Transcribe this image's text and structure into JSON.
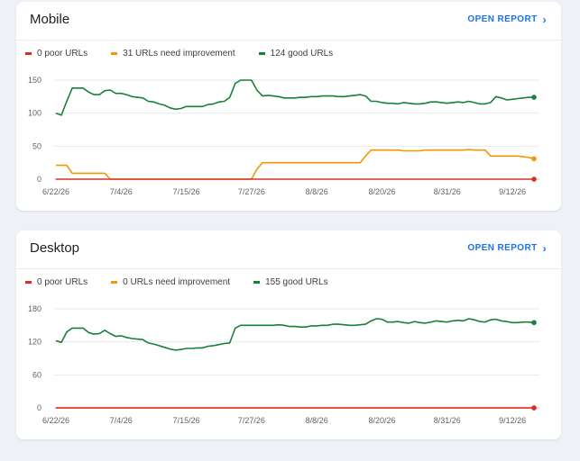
{
  "colors": {
    "poor": "#d93025",
    "needs": "#f29900",
    "good": "#188038",
    "link": "#1a73e8"
  },
  "mobile": {
    "title": "Mobile",
    "open_report": "OPEN REPORT",
    "chevron_icon": "chevron-right-icon",
    "legend": [
      {
        "label": "0 poor URLs",
        "key": "poor"
      },
      {
        "label": "31 URLs need improvement",
        "key": "needs"
      },
      {
        "label": "124 good URLs",
        "key": "good"
      }
    ]
  },
  "desktop": {
    "title": "Desktop",
    "open_report": "OPEN REPORT",
    "chevron_icon": "chevron-right-icon",
    "legend": [
      {
        "label": "0 poor URLs",
        "key": "poor"
      },
      {
        "label": "0 URLs need improvement",
        "key": "needs"
      },
      {
        "label": "155 good URLs",
        "key": "good"
      }
    ]
  },
  "chart_data": [
    {
      "type": "line",
      "x_tick_labels": [
        "6/22/26",
        "7/4/26",
        "7/15/26",
        "7/27/26",
        "8/8/26",
        "8/20/26",
        "8/31/26",
        "9/12/26"
      ],
      "y_ticks": [
        0,
        50,
        100,
        150
      ],
      "ylim": [
        0,
        150
      ],
      "grid": true,
      "series": [
        {
          "name": "good",
          "key": "good",
          "values": [
            [
              0,
              100
            ],
            [
              1,
              97
            ],
            [
              2,
              118
            ],
            [
              3,
              138
            ],
            [
              4,
              138
            ],
            [
              5,
              138
            ],
            [
              6,
              132
            ],
            [
              7,
              128
            ],
            [
              8,
              128
            ],
            [
              9,
              134
            ],
            [
              10,
              135
            ],
            [
              11,
              130
            ],
            [
              12,
              130
            ],
            [
              13,
              128
            ],
            [
              14,
              125
            ],
            [
              15,
              124
            ],
            [
              16,
              123
            ],
            [
              17,
              118
            ],
            [
              18,
              117
            ],
            [
              19,
              114
            ],
            [
              20,
              112
            ],
            [
              21,
              108
            ],
            [
              22,
              106
            ],
            [
              23,
              107
            ],
            [
              24,
              110
            ],
            [
              25,
              110
            ],
            [
              26,
              110
            ],
            [
              27,
              110
            ],
            [
              28,
              113
            ],
            [
              29,
              114
            ],
            [
              30,
              117
            ],
            [
              31,
              118
            ],
            [
              32,
              124
            ],
            [
              33,
              145
            ],
            [
              34,
              150
            ],
            [
              35,
              150
            ],
            [
              36,
              150
            ],
            [
              37,
              135
            ],
            [
              38,
              126
            ],
            [
              39,
              127
            ],
            [
              40,
              126
            ],
            [
              41,
              125
            ],
            [
              42,
              123
            ],
            [
              43,
              123
            ],
            [
              44,
              123
            ],
            [
              45,
              124
            ],
            [
              46,
              124
            ],
            [
              47,
              125
            ],
            [
              48,
              125
            ],
            [
              49,
              126
            ],
            [
              50,
              126
            ],
            [
              51,
              126
            ],
            [
              52,
              125
            ],
            [
              53,
              125
            ],
            [
              54,
              126
            ],
            [
              55,
              127
            ],
            [
              56,
              128
            ],
            [
              57,
              126
            ],
            [
              58,
              118
            ],
            [
              59,
              118
            ],
            [
              60,
              116
            ],
            [
              61,
              115
            ],
            [
              62,
              115
            ],
            [
              63,
              114
            ],
            [
              64,
              116
            ],
            [
              65,
              115
            ],
            [
              66,
              114
            ],
            [
              67,
              114
            ],
            [
              68,
              115
            ],
            [
              69,
              117
            ],
            [
              70,
              117
            ],
            [
              71,
              116
            ],
            [
              72,
              115
            ],
            [
              73,
              116
            ],
            [
              74,
              117
            ],
            [
              75,
              116
            ],
            [
              76,
              118
            ],
            [
              77,
              116
            ],
            [
              78,
              114
            ],
            [
              79,
              114
            ],
            [
              80,
              116
            ],
            [
              81,
              125
            ],
            [
              82,
              123
            ],
            [
              83,
              120
            ],
            [
              84,
              121
            ],
            [
              85,
              122
            ],
            [
              86,
              123
            ],
            [
              87,
              124
            ],
            [
              88,
              124
            ]
          ]
        },
        {
          "name": "needs improvement",
          "key": "needs",
          "values": [
            [
              0,
              21
            ],
            [
              1,
              21
            ],
            [
              2,
              21
            ],
            [
              3,
              9
            ],
            [
              4,
              9
            ],
            [
              5,
              9
            ],
            [
              6,
              9
            ],
            [
              7,
              9
            ],
            [
              8,
              9
            ],
            [
              9,
              9
            ],
            [
              10,
              0
            ],
            [
              11,
              0
            ],
            [
              12,
              0
            ],
            [
              13,
              0
            ],
            [
              14,
              0
            ],
            [
              15,
              0
            ],
            [
              16,
              0
            ],
            [
              17,
              0
            ],
            [
              18,
              0
            ],
            [
              19,
              0
            ],
            [
              20,
              0
            ],
            [
              21,
              0
            ],
            [
              22,
              0
            ],
            [
              23,
              0
            ],
            [
              24,
              0
            ],
            [
              25,
              0
            ],
            [
              26,
              0
            ],
            [
              27,
              0
            ],
            [
              28,
              0
            ],
            [
              29,
              0
            ],
            [
              30,
              0
            ],
            [
              31,
              0
            ],
            [
              32,
              0
            ],
            [
              33,
              0
            ],
            [
              34,
              0
            ],
            [
              35,
              0
            ],
            [
              36,
              0
            ],
            [
              37,
              15
            ],
            [
              38,
              25
            ],
            [
              39,
              25
            ],
            [
              40,
              25
            ],
            [
              41,
              25
            ],
            [
              42,
              25
            ],
            [
              43,
              25
            ],
            [
              44,
              25
            ],
            [
              45,
              25
            ],
            [
              46,
              25
            ],
            [
              47,
              25
            ],
            [
              48,
              25
            ],
            [
              49,
              25
            ],
            [
              50,
              25
            ],
            [
              51,
              25
            ],
            [
              52,
              25
            ],
            [
              53,
              25
            ],
            [
              54,
              25
            ],
            [
              55,
              25
            ],
            [
              56,
              25
            ],
            [
              57,
              35
            ],
            [
              58,
              44
            ],
            [
              59,
              44
            ],
            [
              60,
              44
            ],
            [
              61,
              44
            ],
            [
              62,
              44
            ],
            [
              63,
              44
            ],
            [
              64,
              43
            ],
            [
              65,
              43
            ],
            [
              66,
              43
            ],
            [
              67,
              43
            ],
            [
              68,
              44
            ],
            [
              69,
              44
            ],
            [
              70,
              44
            ],
            [
              71,
              44
            ],
            [
              72,
              44
            ],
            [
              73,
              44
            ],
            [
              74,
              44
            ],
            [
              75,
              44
            ],
            [
              76,
              45
            ],
            [
              77,
              44
            ],
            [
              78,
              44
            ],
            [
              79,
              44
            ],
            [
              80,
              35
            ],
            [
              81,
              35
            ],
            [
              82,
              35
            ],
            [
              83,
              35
            ],
            [
              84,
              35
            ],
            [
              85,
              35
            ],
            [
              86,
              34
            ],
            [
              87,
              33
            ],
            [
              88,
              31
            ]
          ]
        },
        {
          "name": "poor",
          "key": "poor",
          "values": [
            [
              0,
              0
            ],
            [
              88,
              0
            ]
          ]
        }
      ]
    },
    {
      "type": "line",
      "x_tick_labels": [
        "6/22/26",
        "7/4/26",
        "7/15/26",
        "7/27/26",
        "8/8/26",
        "8/20/26",
        "8/31/26",
        "9/12/26"
      ],
      "y_ticks": [
        0,
        60,
        120,
        180
      ],
      "ylim": [
        0,
        180
      ],
      "grid": true,
      "series": [
        {
          "name": "good",
          "key": "good",
          "values": [
            [
              0,
              122
            ],
            [
              1,
              119
            ],
            [
              2,
              138
            ],
            [
              3,
              145
            ],
            [
              4,
              145
            ],
            [
              5,
              145
            ],
            [
              6,
              137
            ],
            [
              7,
              134
            ],
            [
              8,
              135
            ],
            [
              9,
              141
            ],
            [
              10,
              135
            ],
            [
              11,
              130
            ],
            [
              12,
              131
            ],
            [
              13,
              128
            ],
            [
              14,
              126
            ],
            [
              15,
              125
            ],
            [
              16,
              124
            ],
            [
              17,
              118
            ],
            [
              18,
              116
            ],
            [
              19,
              113
            ],
            [
              20,
              110
            ],
            [
              21,
              107
            ],
            [
              22,
              105
            ],
            [
              23,
              106
            ],
            [
              24,
              108
            ],
            [
              25,
              108
            ],
            [
              26,
              109
            ],
            [
              27,
              109
            ],
            [
              28,
              112
            ],
            [
              29,
              113
            ],
            [
              30,
              115
            ],
            [
              31,
              117
            ],
            [
              32,
              118
            ],
            [
              33,
              145
            ],
            [
              34,
              150
            ],
            [
              35,
              150
            ],
            [
              36,
              150
            ],
            [
              37,
              150
            ],
            [
              38,
              150
            ],
            [
              39,
              150
            ],
            [
              40,
              150
            ],
            [
              41,
              151
            ],
            [
              42,
              150
            ],
            [
              43,
              148
            ],
            [
              44,
              148
            ],
            [
              45,
              147
            ],
            [
              46,
              147
            ],
            [
              47,
              149
            ],
            [
              48,
              149
            ],
            [
              49,
              150
            ],
            [
              50,
              150
            ],
            [
              51,
              152
            ],
            [
              52,
              152
            ],
            [
              53,
              151
            ],
            [
              54,
              150
            ],
            [
              55,
              150
            ],
            [
              56,
              151
            ],
            [
              57,
              152
            ],
            [
              58,
              158
            ],
            [
              59,
              162
            ],
            [
              60,
              161
            ],
            [
              61,
              156
            ],
            [
              62,
              156
            ],
            [
              63,
              157
            ],
            [
              64,
              155
            ],
            [
              65,
              154
            ],
            [
              66,
              157
            ],
            [
              67,
              155
            ],
            [
              68,
              154
            ],
            [
              69,
              156
            ],
            [
              70,
              158
            ],
            [
              71,
              157
            ],
            [
              72,
              156
            ],
            [
              73,
              158
            ],
            [
              74,
              159
            ],
            [
              75,
              158
            ],
            [
              76,
              162
            ],
            [
              77,
              160
            ],
            [
              78,
              157
            ],
            [
              79,
              156
            ],
            [
              80,
              160
            ],
            [
              81,
              161
            ],
            [
              82,
              158
            ],
            [
              83,
              157
            ],
            [
              84,
              155
            ],
            [
              85,
              155
            ],
            [
              86,
              156
            ],
            [
              87,
              156
            ],
            [
              88,
              155
            ]
          ]
        },
        {
          "name": "needs improvement",
          "key": "needs",
          "values": [
            [
              0,
              0
            ],
            [
              88,
              0
            ]
          ]
        },
        {
          "name": "poor",
          "key": "poor",
          "values": [
            [
              0,
              0
            ],
            [
              88,
              0
            ]
          ]
        }
      ]
    }
  ]
}
